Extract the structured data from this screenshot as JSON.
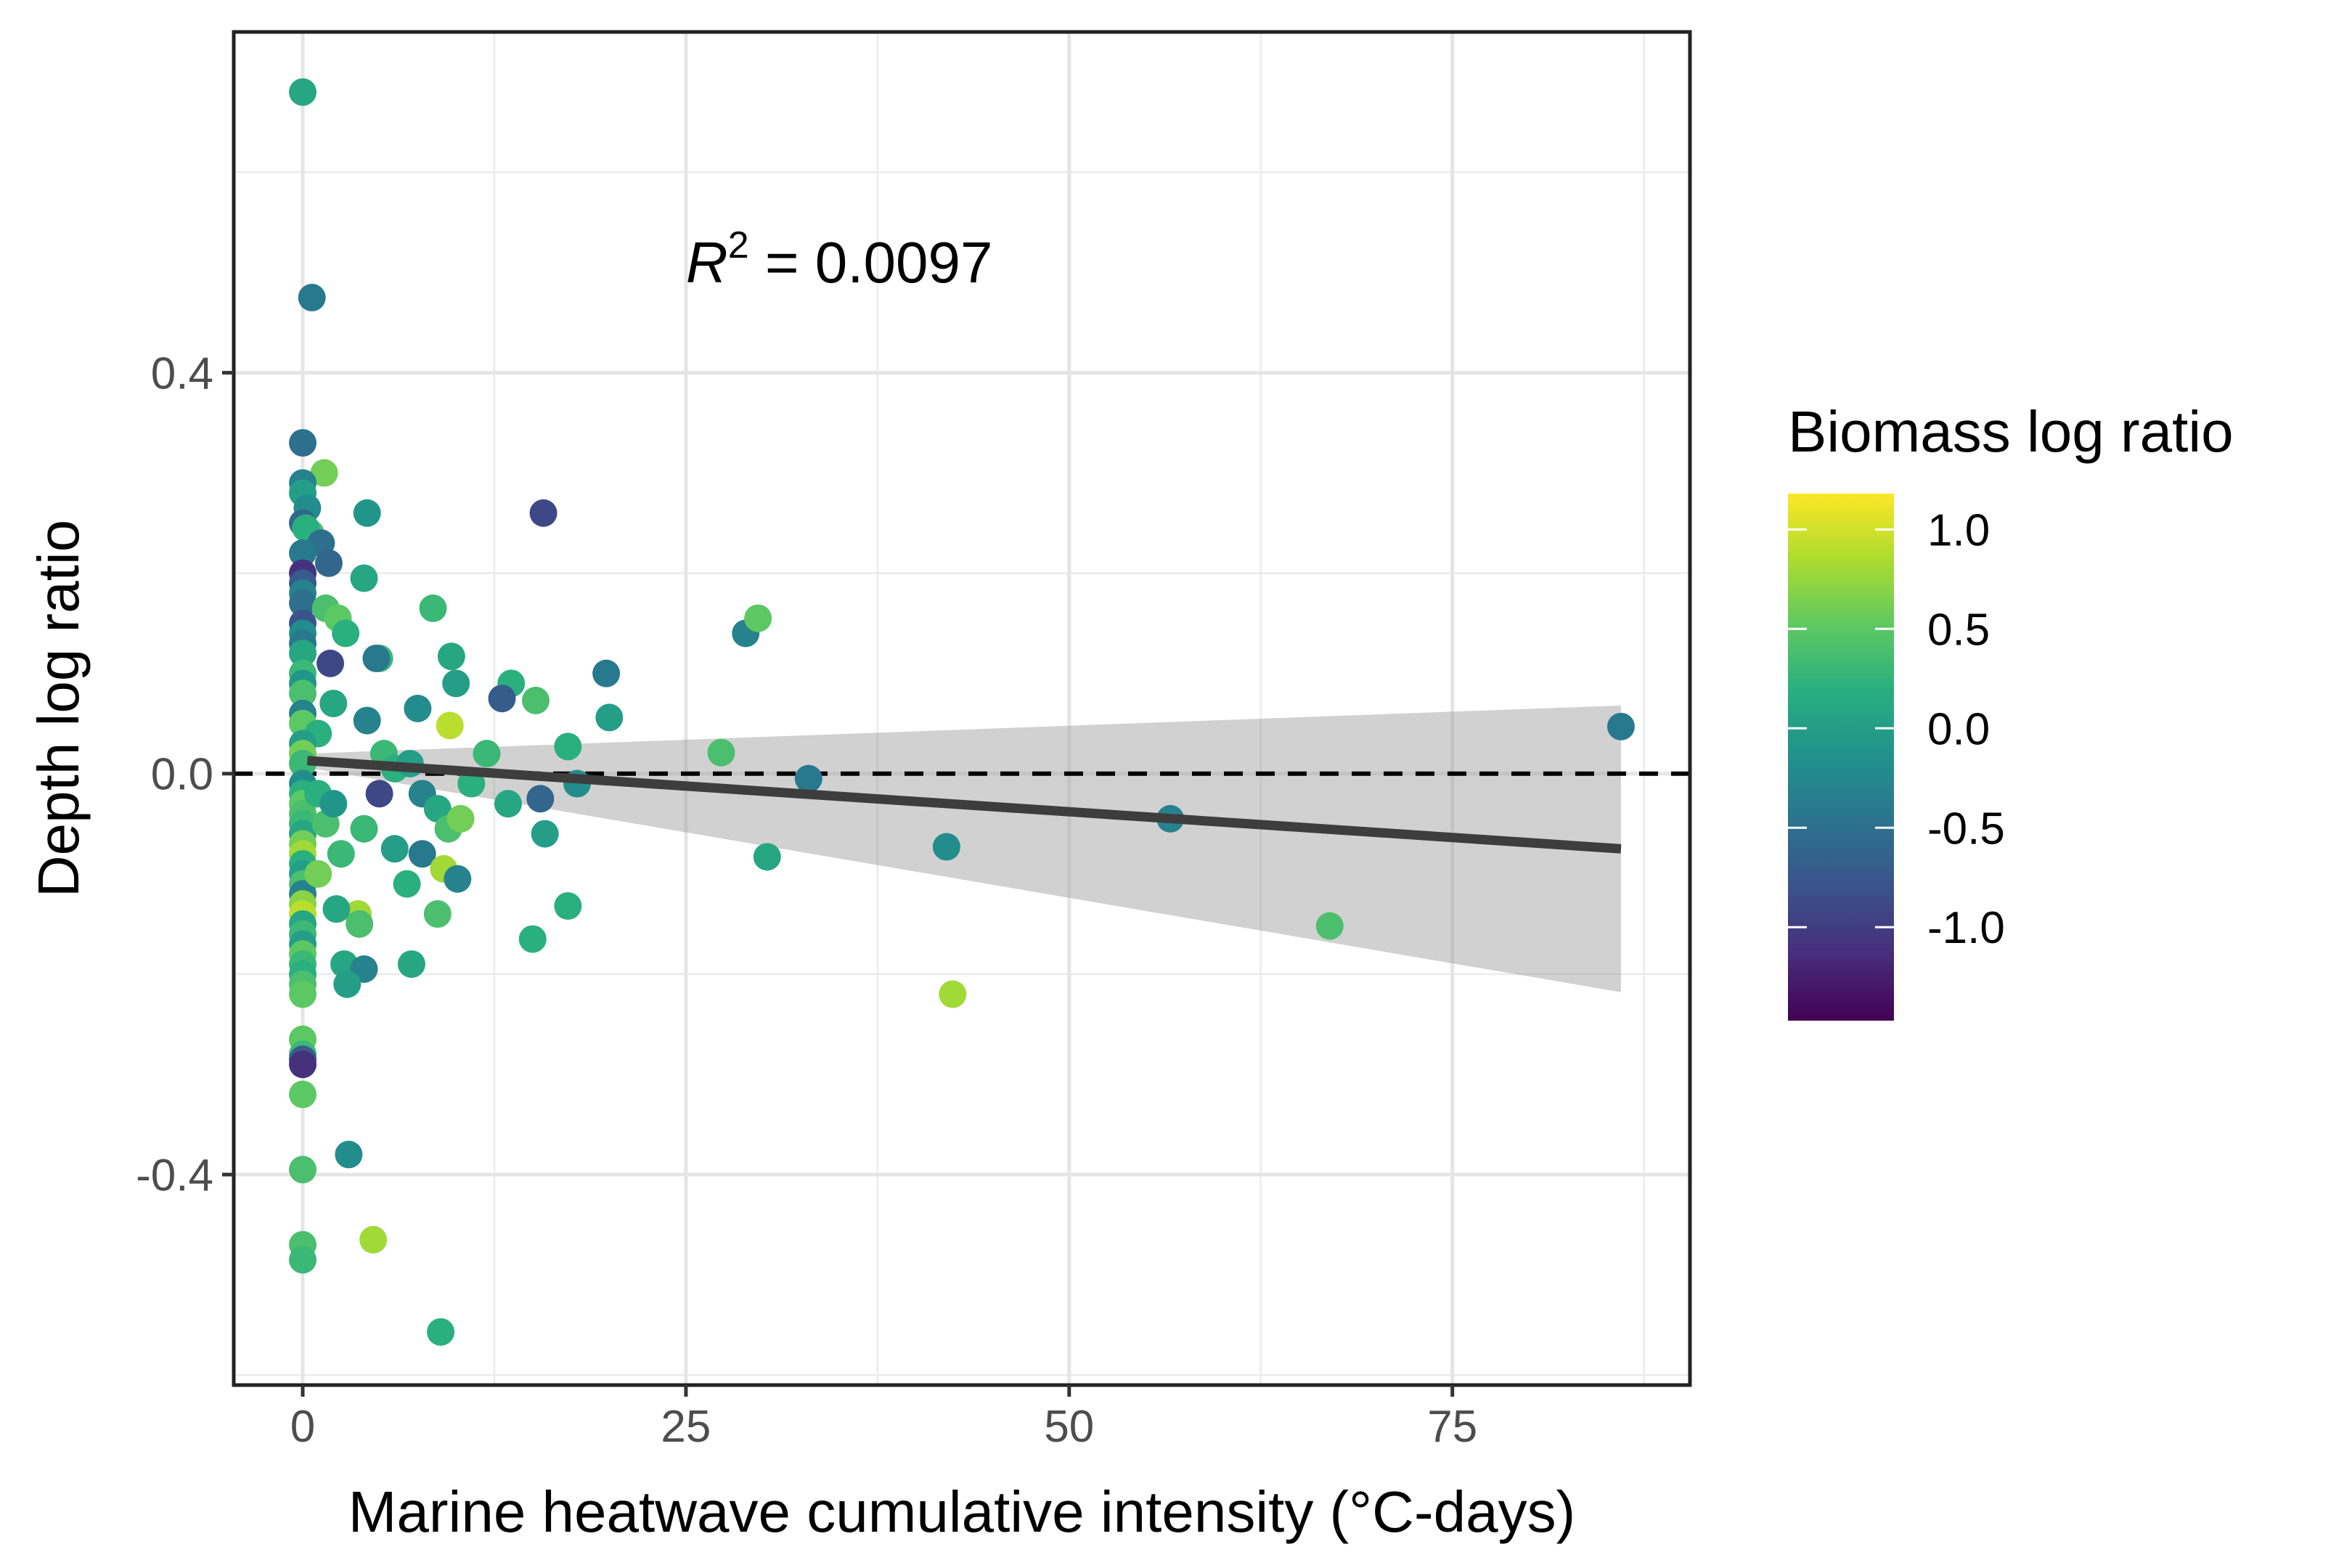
{
  "chart_data": {
    "type": "scatter",
    "xlabel": "Marine heatwave cumulative intensity (°C-days)",
    "ylabel": "Depth log ratio",
    "xlim": [
      -4.5,
      90.5
    ],
    "ylim": [
      -0.61,
      0.74
    ],
    "x_ticks": [
      0,
      25,
      50,
      75
    ],
    "x_tick_labels": [
      "0",
      "25",
      "50",
      "75"
    ],
    "y_ticks": [
      -0.4,
      0.0,
      0.4
    ],
    "y_tick_labels": [
      "-0.4",
      "0.0",
      "0.4"
    ],
    "grid": true,
    "annotation": {
      "r_symbol": "R",
      "exponent": "2",
      "text": " = 0.0097",
      "x": 25,
      "y": 0.49
    },
    "reference_line": {
      "y": 0,
      "style": "dashed"
    },
    "fit": {
      "x_start": 0.3,
      "x_end": 86,
      "y_start": 0.013,
      "y_end": -0.075,
      "ci_upper_start": 0.02,
      "ci_upper_end": 0.068,
      "ci_lower_start": 0.006,
      "ci_lower_end": -0.218
    },
    "colorbar": {
      "title": "Biomass log ratio",
      "min": -1.47,
      "max": 1.18,
      "ticks": [
        1.0,
        0.5,
        0.0,
        -0.5,
        -1.0
      ],
      "tick_labels": [
        "1.0",
        "0.5",
        "0.0",
        "-0.5",
        "-1.0"
      ]
    },
    "points": [
      {
        "x": 0,
        "y": 0.68,
        "c": 0.1
      },
      {
        "x": 0.6,
        "y": 0.475,
        "c": -0.4
      },
      {
        "x": 0,
        "y": 0.33,
        "c": -0.5
      },
      {
        "x": 1.4,
        "y": 0.3,
        "c": 0.6
      },
      {
        "x": 0,
        "y": 0.29,
        "c": -0.3
      },
      {
        "x": 0,
        "y": 0.28,
        "c": 0.0
      },
      {
        "x": 0.3,
        "y": 0.265,
        "c": -0.2
      },
      {
        "x": 0,
        "y": 0.25,
        "c": -0.6
      },
      {
        "x": 0.5,
        "y": 0.24,
        "c": 0.4
      },
      {
        "x": 0.2,
        "y": 0.245,
        "c": 0.2
      },
      {
        "x": 1.2,
        "y": 0.23,
        "c": -0.5
      },
      {
        "x": 0,
        "y": 0.22,
        "c": -0.4
      },
      {
        "x": 1.7,
        "y": 0.21,
        "c": -0.6
      },
      {
        "x": 0,
        "y": 0.2,
        "c": -1.1
      },
      {
        "x": 0,
        "y": 0.19,
        "c": -0.7
      },
      {
        "x": 0,
        "y": 0.18,
        "c": -0.3
      },
      {
        "x": 0,
        "y": 0.17,
        "c": -0.5
      },
      {
        "x": 1.5,
        "y": 0.165,
        "c": 0.4
      },
      {
        "x": 2.3,
        "y": 0.155,
        "c": 0.5
      },
      {
        "x": 0,
        "y": 0.15,
        "c": -0.8
      },
      {
        "x": 0,
        "y": 0.14,
        "c": -0.2
      },
      {
        "x": 0,
        "y": 0.13,
        "c": -0.4
      },
      {
        "x": 2.8,
        "y": 0.14,
        "c": 0.2
      },
      {
        "x": 0,
        "y": 0.12,
        "c": 0.1
      },
      {
        "x": 1.8,
        "y": 0.11,
        "c": -0.9
      },
      {
        "x": 0,
        "y": 0.1,
        "c": 0.3
      },
      {
        "x": 0,
        "y": 0.09,
        "c": -0.1
      },
      {
        "x": 0,
        "y": 0.08,
        "c": 0.4
      },
      {
        "x": 2,
        "y": 0.07,
        "c": 0.1
      },
      {
        "x": 0,
        "y": 0.06,
        "c": -0.3
      },
      {
        "x": 0,
        "y": 0.05,
        "c": 0.5
      },
      {
        "x": 1,
        "y": 0.04,
        "c": 0.2
      },
      {
        "x": 0,
        "y": 0.03,
        "c": 0.0
      },
      {
        "x": 0,
        "y": 0.02,
        "c": 0.6
      },
      {
        "x": 0,
        "y": 0.01,
        "c": 0.3
      },
      {
        "x": 0,
        "y": -0.01,
        "c": -0.2
      },
      {
        "x": 0,
        "y": -0.02,
        "c": 0.2
      },
      {
        "x": 0,
        "y": -0.03,
        "c": 0.5
      },
      {
        "x": 0,
        "y": -0.04,
        "c": 0.4
      },
      {
        "x": 0,
        "y": -0.05,
        "c": 0.3
      },
      {
        "x": 0,
        "y": -0.06,
        "c": 0.1
      },
      {
        "x": 0,
        "y": -0.07,
        "c": 0.6
      },
      {
        "x": 0,
        "y": -0.08,
        "c": 0.8
      },
      {
        "x": 0,
        "y": -0.09,
        "c": 0.2
      },
      {
        "x": 0,
        "y": -0.1,
        "c": 0.0
      },
      {
        "x": 0,
        "y": -0.11,
        "c": 0.4
      },
      {
        "x": 0,
        "y": -0.12,
        "c": -0.3
      },
      {
        "x": 0,
        "y": -0.13,
        "c": 0.7
      },
      {
        "x": 0,
        "y": -0.14,
        "c": 0.9
      },
      {
        "x": 0,
        "y": -0.15,
        "c": 0.1
      },
      {
        "x": 0,
        "y": -0.16,
        "c": 0.3
      },
      {
        "x": 0,
        "y": -0.17,
        "c": 0.0
      },
      {
        "x": 0,
        "y": -0.18,
        "c": 0.5
      },
      {
        "x": 0,
        "y": -0.19,
        "c": 0.3
      },
      {
        "x": 0,
        "y": -0.2,
        "c": 0.2
      },
      {
        "x": 0,
        "y": -0.21,
        "c": 0.4
      },
      {
        "x": 0,
        "y": -0.22,
        "c": 0.5
      },
      {
        "x": 1,
        "y": -0.02,
        "c": 0.2
      },
      {
        "x": 1.5,
        "y": -0.05,
        "c": 0.4
      },
      {
        "x": 2,
        "y": -0.03,
        "c": -0.1
      },
      {
        "x": 2.5,
        "y": -0.08,
        "c": 0.3
      },
      {
        "x": 1,
        "y": -0.1,
        "c": 0.6
      },
      {
        "x": 0,
        "y": -0.265,
        "c": 0.5
      },
      {
        "x": 0,
        "y": -0.28,
        "c": 0.3
      },
      {
        "x": 0,
        "y": -0.285,
        "c": -0.7
      },
      {
        "x": 0,
        "y": -0.29,
        "c": -1.1
      },
      {
        "x": 0,
        "y": -0.32,
        "c": 0.5
      },
      {
        "x": 0,
        "y": -0.395,
        "c": 0.4
      },
      {
        "x": 3,
        "y": -0.38,
        "c": -0.2
      },
      {
        "x": 0,
        "y": -0.47,
        "c": 0.4
      },
      {
        "x": 0,
        "y": -0.485,
        "c": 0.3
      },
      {
        "x": 4.6,
        "y": -0.465,
        "c": 0.8
      },
      {
        "x": 9,
        "y": -0.557,
        "c": 0.2
      },
      {
        "x": 4.2,
        "y": 0.26,
        "c": -0.1
      },
      {
        "x": 15.7,
        "y": 0.26,
        "c": -0.9
      },
      {
        "x": 4,
        "y": 0.195,
        "c": 0.1
      },
      {
        "x": 8.5,
        "y": 0.165,
        "c": 0.3
      },
      {
        "x": 5,
        "y": 0.115,
        "c": 0.3
      },
      {
        "x": 4.8,
        "y": 0.115,
        "c": -0.4
      },
      {
        "x": 9.7,
        "y": 0.117,
        "c": 0.1
      },
      {
        "x": 10,
        "y": 0.09,
        "c": 0.0
      },
      {
        "x": 13.6,
        "y": 0.09,
        "c": 0.2
      },
      {
        "x": 13,
        "y": 0.075,
        "c": -0.7
      },
      {
        "x": 15.2,
        "y": 0.073,
        "c": 0.4
      },
      {
        "x": 19.8,
        "y": 0.1,
        "c": -0.4
      },
      {
        "x": 20,
        "y": 0.056,
        "c": 0.0
      },
      {
        "x": 7.5,
        "y": 0.065,
        "c": -0.2
      },
      {
        "x": 4.2,
        "y": 0.053,
        "c": -0.3
      },
      {
        "x": 9.6,
        "y": 0.048,
        "c": 0.9
      },
      {
        "x": 17.3,
        "y": 0.027,
        "c": 0.2
      },
      {
        "x": 27.3,
        "y": 0.021,
        "c": 0.4
      },
      {
        "x": 28.9,
        "y": 0.14,
        "c": -0.3
      },
      {
        "x": 29.7,
        "y": 0.155,
        "c": 0.5
      },
      {
        "x": 86,
        "y": 0.047,
        "c": -0.4
      },
      {
        "x": 5.3,
        "y": 0.02,
        "c": 0.3
      },
      {
        "x": 6,
        "y": 0.005,
        "c": 0.2
      },
      {
        "x": 7,
        "y": 0.01,
        "c": 0.0
      },
      {
        "x": 7.8,
        "y": -0.02,
        "c": -0.3
      },
      {
        "x": 8.8,
        "y": -0.035,
        "c": 0.1
      },
      {
        "x": 9.5,
        "y": -0.055,
        "c": 0.4
      },
      {
        "x": 10.3,
        "y": -0.045,
        "c": 0.6
      },
      {
        "x": 11,
        "y": -0.01,
        "c": 0.2
      },
      {
        "x": 12,
        "y": 0.02,
        "c": 0.3
      },
      {
        "x": 13.4,
        "y": -0.03,
        "c": 0.1
      },
      {
        "x": 15.5,
        "y": -0.025,
        "c": -0.6
      },
      {
        "x": 15.8,
        "y": -0.06,
        "c": 0.0
      },
      {
        "x": 17.9,
        "y": -0.01,
        "c": -0.2
      },
      {
        "x": 5,
        "y": -0.02,
        "c": -0.9
      },
      {
        "x": 4,
        "y": -0.055,
        "c": 0.3
      },
      {
        "x": 6,
        "y": -0.075,
        "c": 0.0
      },
      {
        "x": 7.8,
        "y": -0.08,
        "c": -0.4
      },
      {
        "x": 6.8,
        "y": -0.11,
        "c": 0.2
      },
      {
        "x": 9.2,
        "y": -0.095,
        "c": 0.8
      },
      {
        "x": 10.1,
        "y": -0.105,
        "c": -0.3
      },
      {
        "x": 3.6,
        "y": -0.14,
        "c": 0.8
      },
      {
        "x": 3.7,
        "y": -0.15,
        "c": 0.4
      },
      {
        "x": 8.8,
        "y": -0.14,
        "c": 0.4
      },
      {
        "x": 17.3,
        "y": -0.132,
        "c": 0.2
      },
      {
        "x": 15,
        "y": -0.165,
        "c": 0.2
      },
      {
        "x": 2.2,
        "y": -0.135,
        "c": 0.1
      },
      {
        "x": 2.7,
        "y": -0.19,
        "c": 0.1
      },
      {
        "x": 4,
        "y": -0.195,
        "c": -0.3
      },
      {
        "x": 2.9,
        "y": -0.21,
        "c": 0.0
      },
      {
        "x": 7.1,
        "y": -0.19,
        "c": 0.1
      },
      {
        "x": 30.3,
        "y": -0.083,
        "c": 0.1
      },
      {
        "x": 33,
        "y": -0.005,
        "c": -0.4
      },
      {
        "x": 42,
        "y": -0.073,
        "c": -0.2
      },
      {
        "x": 42.4,
        "y": -0.22,
        "c": 0.8
      },
      {
        "x": 56.6,
        "y": -0.045,
        "c": -0.3
      },
      {
        "x": 67,
        "y": -0.152,
        "c": 0.4
      }
    ]
  }
}
